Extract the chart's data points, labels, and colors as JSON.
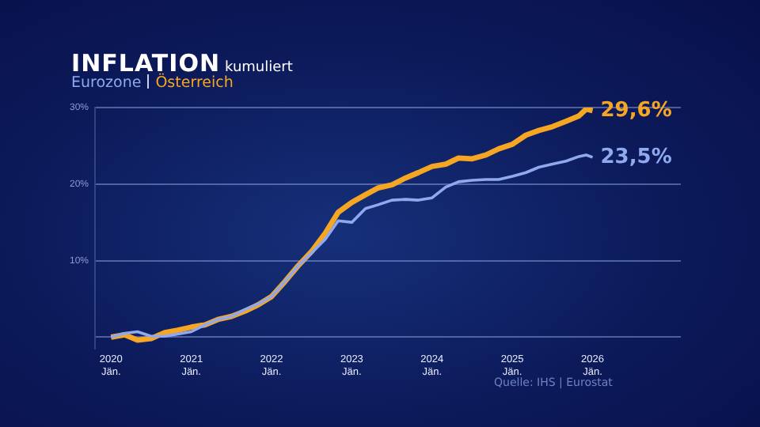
{
  "chart_data": {
    "type": "line",
    "title": "INFLATION",
    "subtitle": "kumuliert",
    "x": [
      2020.0,
      2020.17,
      2020.33,
      2020.5,
      2020.67,
      2020.83,
      2021.0,
      2021.17,
      2021.33,
      2021.5,
      2021.67,
      2021.83,
      2022.0,
      2022.17,
      2022.33,
      2022.5,
      2022.67,
      2022.83,
      2023.0,
      2023.17,
      2023.33,
      2023.5,
      2023.67,
      2023.83,
      2024.0,
      2024.17,
      2024.33,
      2024.5,
      2024.67,
      2024.83,
      2025.0,
      2025.17,
      2025.33,
      2025.5,
      2025.67,
      2025.83,
      2025.92,
      2026.0
    ],
    "series": [
      {
        "name": "Eurozone",
        "color": "#8fa8ee",
        "values": [
          0,
          0.5,
          0.7,
          0.1,
          0.1,
          0.4,
          0.7,
          1.6,
          2.3,
          2.7,
          3.6,
          4.3,
          5.3,
          7.3,
          9.3,
          11.0,
          12.8,
          15.2,
          15.0,
          16.8,
          17.3,
          17.9,
          18.0,
          17.9,
          18.2,
          19.6,
          20.3,
          20.5,
          20.6,
          20.6,
          21.0,
          21.5,
          22.2,
          22.6,
          23.0,
          23.6,
          23.8,
          23.5
        ]
      },
      {
        "name": "Österreich",
        "color": "#f5a623",
        "values": [
          0,
          0.3,
          -0.4,
          -0.2,
          0.6,
          0.9,
          1.3,
          1.6,
          2.3,
          2.7,
          3.4,
          4.2,
          5.3,
          7.3,
          9.3,
          11.2,
          13.6,
          16.3,
          17.6,
          18.6,
          19.5,
          19.9,
          20.8,
          21.5,
          22.3,
          22.6,
          23.4,
          23.3,
          23.8,
          24.6,
          25.2,
          26.4,
          27.0,
          27.5,
          28.2,
          28.9,
          29.8,
          29.6
        ]
      }
    ],
    "xlim": [
      2019.8,
      2027.1
    ],
    "xticks": [
      {
        "value": 2020,
        "label": "2020 Jän."
      },
      {
        "value": 2021,
        "label": "2021 Jän."
      },
      {
        "value": 2022,
        "label": "2022 Jän."
      },
      {
        "value": 2023,
        "label": "2023 Jän."
      },
      {
        "value": 2024,
        "label": "2024 Jän."
      },
      {
        "value": 2025,
        "label": "2025 Jän."
      },
      {
        "value": 2026,
        "label": "2026 Jän."
      }
    ],
    "ylim": [
      -1.5,
      30
    ],
    "yticks": [
      {
        "value": 0,
        "label": null
      },
      {
        "value": 10,
        "label": "10%"
      },
      {
        "value": 20,
        "label": "20%"
      },
      {
        "value": 30,
        "label": "30%"
      }
    ],
    "grid": "y",
    "legend": "top left",
    "marker": "none",
    "annotations": [
      {
        "text": "23,5%",
        "x": 2026.0,
        "y": 23.5
      },
      {
        "text": "29,6%",
        "x": 2026.0,
        "y": 29.6
      },
      "Quelle: IHS | Eurostat"
    ]
  }
}
